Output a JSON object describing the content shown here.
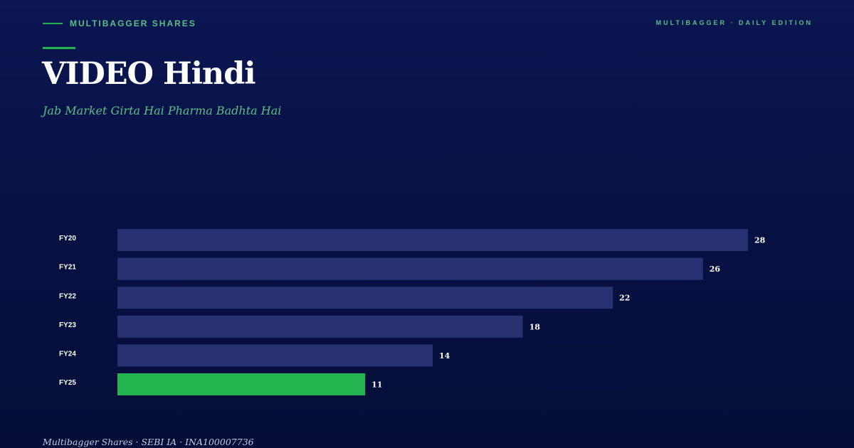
{
  "header": {
    "brand": "MULTIBAGGER SHARES",
    "edition": "MULTIBAGGER · DAILY EDITION"
  },
  "title": "VIDEO Hindi",
  "subtitle": "Jab Market Girta Hai Pharma Badhta Hai",
  "footer": "Multibagger Shares · SEBI IA · INA100007736",
  "colors": {
    "background": "#071041",
    "bar": "#283272",
    "highlight_bar": "#23b34f",
    "accent_text": "#5bbf84"
  },
  "chart_data": {
    "type": "bar",
    "orientation": "horizontal",
    "categories": [
      "FY20",
      "FY21",
      "FY22",
      "FY23",
      "FY24",
      "FY25"
    ],
    "values": [
      28,
      26,
      22,
      18,
      14,
      11
    ],
    "highlight_index": 5,
    "xlim": [
      0,
      28
    ],
    "grid": false,
    "legend": "none"
  }
}
